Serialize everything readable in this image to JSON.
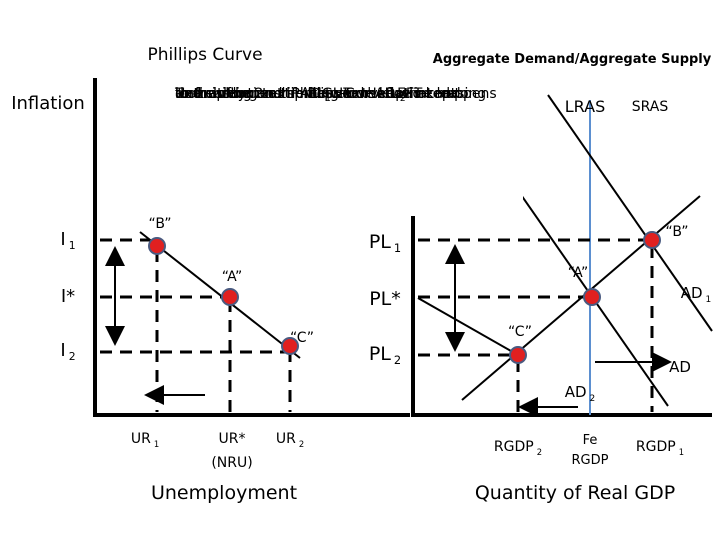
{
  "left_graph": {
    "title": "Phillips Curve",
    "y_label": "Inflation",
    "x_label": "Unemployment",
    "y_labels": [
      [
        "I",
        "1"
      ],
      [
        "I*"
      ],
      [
        "I",
        "2"
      ]
    ],
    "points": [
      "“B”",
      "“A”",
      "“C”"
    ],
    "x_ticks": [
      [
        "UR",
        "1"
      ],
      [
        "UR*"
      ],
      [
        "UR",
        "2"
      ]
    ],
    "nru": "(NRU)"
  },
  "right_graph": {
    "title": "Aggregate Demand/Aggregate Supply",
    "x_label": "Quantity of Real GDP",
    "lras": "LRAS",
    "sras": "SRAS",
    "y_labels": [
      [
        "PL",
        "1"
      ],
      [
        "PL*"
      ],
      [
        "PL",
        "2"
      ]
    ],
    "points": [
      "“B”",
      "“A”",
      "“C”"
    ],
    "curves": [
      [
        "AD",
        "1"
      ],
      [
        "AD"
      ],
      [
        "AD",
        "2"
      ]
    ],
    "x_ticks": [
      [
        "RGDP",
        "2"
      ],
      [
        "Fe",
        "RGDP"
      ],
      [
        "RGDP",
        "1"
      ]
    ]
  },
  "callout": [
    [
      "To finish out our Phillips Curve we need to"
    ],
    [
      "look at the 2 extremes and see what happens"
    ],
    [
      "to the relationship between Inflation and"
    ],
    [
      "Unemployment if AD ",
      "1",
      " curve kept increasing"
    ],
    [
      "and shifting to the RIGHT or AD ",
      "2",
      " is kept"
    ],
    [
      "decreasing and shifting to the LEFT"
    ]
  ]
}
